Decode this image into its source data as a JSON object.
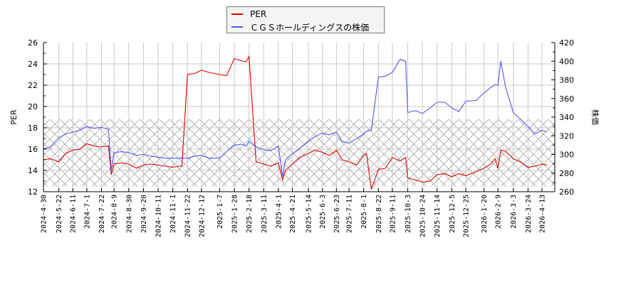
{
  "legend": {
    "items": [
      {
        "label": "PER",
        "color": "#dd0000"
      },
      {
        "label": "ＣＧＳホールディングスの株価",
        "color": "#5555ee"
      }
    ]
  },
  "axes": {
    "left_title": "PER",
    "right_title": "株価"
  },
  "chart_data": {
    "type": "line",
    "title": "",
    "xlabel": "",
    "ylabel": "PER",
    "y2label": "株価",
    "ylim": [
      12,
      26
    ],
    "y2lim": [
      260,
      420
    ],
    "yticks": [
      12,
      14,
      16,
      18,
      20,
      22,
      24,
      26
    ],
    "y2ticks": [
      260,
      280,
      300,
      320,
      340,
      360,
      380,
      400,
      420
    ],
    "grid": true,
    "legend_position": "top-center",
    "shaded_band": {
      "axis": "PER",
      "from": 12.5,
      "to": 18.8,
      "pattern": "diagonal-crosshatch"
    },
    "x_tick_labels": [
      "2024-4-30",
      "2024-5-22",
      "2024-6-11",
      "2024-7-1",
      "2024-7-22",
      "2024-8-9",
      "2024-8-30",
      "2024-9-20",
      "2024-10-11",
      "2024-11-1",
      "2024-11-22",
      "2024-12-12",
      "2025-1-7",
      "2025-1-28",
      "2025-2-18",
      "2025-3-11",
      "2025-4-1",
      "2025-4-21",
      "2025-5-14",
      "2025-6-3",
      "2025-6-23",
      "2025-7-11",
      "2025-8-1",
      "2025-8-22",
      "2025-9-11",
      "2025-10-3",
      "2025-10-24",
      "2025-11-14",
      "2025-12-5",
      "2025-12-25",
      "2026-1-20",
      "2026-2-9",
      "2026-3-3",
      "2026-3-24",
      "2026-4-13"
    ],
    "x": [
      "2024-4-30",
      "2024-5-10",
      "2024-5-22",
      "2024-6-1",
      "2024-6-11",
      "2024-6-21",
      "2024-7-1",
      "2024-7-11",
      "2024-7-22",
      "2024-8-1",
      "2024-8-5",
      "2024-8-9",
      "2024-8-20",
      "2024-8-30",
      "2024-9-10",
      "2024-9-20",
      "2024-10-1",
      "2024-10-11",
      "2024-10-22",
      "2024-11-1",
      "2024-11-12",
      "2024-11-14",
      "2024-11-22",
      "2024-12-2",
      "2024-12-12",
      "2024-12-23",
      "2025-1-7",
      "2025-1-17",
      "2025-1-28",
      "2025-2-7",
      "2025-2-14",
      "2025-2-18",
      "2025-2-28",
      "2025-3-11",
      "2025-3-21",
      "2025-4-1",
      "2025-4-7",
      "2025-4-11",
      "2025-4-21",
      "2025-5-1",
      "2025-5-14",
      "2025-5-23",
      "2025-6-3",
      "2025-6-13",
      "2025-6-23",
      "2025-7-1",
      "2025-7-11",
      "2025-7-22",
      "2025-8-1",
      "2025-8-5",
      "2025-8-12",
      "2025-8-22",
      "2025-9-1",
      "2025-9-11",
      "2025-9-22",
      "2025-9-30",
      "2025-10-3",
      "2025-10-14",
      "2025-10-24",
      "2025-11-4",
      "2025-11-14",
      "2025-11-25",
      "2025-12-5",
      "2025-12-15",
      "2025-12-25",
      "2026-1-9",
      "2026-1-20",
      "2026-1-30",
      "2026-2-5",
      "2026-2-9",
      "2026-2-13",
      "2026-2-20",
      "2026-3-3",
      "2026-3-13",
      "2026-3-24",
      "2026-4-3",
      "2026-4-13",
      "2026-4-20"
    ],
    "series": [
      {
        "name": "PER",
        "axis": "left",
        "color": "#dd0000",
        "values": [
          15.0,
          15.1,
          14.8,
          15.6,
          15.9,
          16.0,
          16.5,
          16.3,
          16.2,
          16.3,
          13.6,
          14.6,
          14.7,
          14.6,
          14.2,
          14.5,
          14.6,
          14.5,
          14.4,
          14.3,
          14.4,
          14.4,
          23.0,
          23.1,
          23.4,
          23.2,
          23.0,
          22.9,
          24.5,
          24.3,
          24.2,
          24.7,
          14.8,
          14.6,
          14.4,
          14.7,
          13.1,
          14.0,
          14.6,
          15.2,
          15.6,
          15.9,
          15.7,
          15.4,
          15.9,
          15.0,
          14.8,
          14.5,
          15.4,
          15.6,
          12.2,
          14.1,
          14.2,
          15.2,
          14.9,
          15.2,
          13.3,
          13.1,
          12.9,
          13.0,
          13.6,
          13.7,
          13.4,
          13.7,
          13.5,
          13.9,
          14.2,
          14.6,
          15.1,
          14.2,
          15.9,
          15.8,
          15.1,
          14.8,
          14.3,
          14.4,
          14.6,
          14.5
        ]
      },
      {
        "name": "ＣＧＳホールディングスの株価",
        "axis": "right",
        "color": "#5555ee",
        "values": [
          306,
          308,
          318,
          322,
          324,
          326,
          330,
          328,
          329,
          327,
          283,
          302,
          303,
          302,
          299,
          300,
          298,
          297,
          296,
          296,
          296,
          296,
          296,
          298,
          299,
          296,
          296,
          303,
          310,
          311,
          309,
          314,
          308,
          305,
          304,
          309,
          276,
          294,
          301,
          306,
          314,
          319,
          323,
          321,
          324,
          314,
          312,
          317,
          322,
          325,
          326,
          383,
          384,
          388,
          402,
          400,
          345,
          347,
          344,
          350,
          356,
          356,
          350,
          346,
          357,
          358,
          366,
          372,
          375,
          374,
          400,
          372,
          345,
          338,
          330,
          322,
          326,
          324
        ]
      }
    ]
  }
}
